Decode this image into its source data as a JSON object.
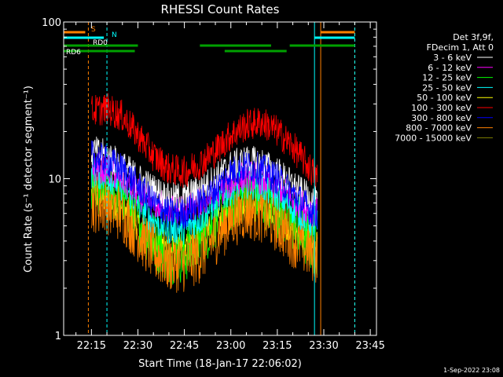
{
  "chart_data": {
    "type": "line",
    "title": "RHESSI Count Rates",
    "xlabel": "Start Time (18-Jan-17 22:06:02)",
    "ylabel": "Count Rate (s⁻¹ detector segment⁻¹)",
    "y_scale": "log",
    "ylim": [
      1,
      100
    ],
    "xlim": [
      "22:06:02",
      "23:47:00"
    ],
    "x_ticks": [
      "22:15",
      "22:30",
      "22:45",
      "23:00",
      "23:15",
      "23:30",
      "23:45"
    ],
    "y_ticks": [
      "1",
      "10",
      "100"
    ],
    "legend_header": [
      "Det 3f,9f,",
      "FDecim 1, Att 0"
    ],
    "legend_position": "right",
    "timestamp": "1-Sep-2022 23:08",
    "series": [
      {
        "name": "3 - 6 keV",
        "color": "#ffffff",
        "start": "22:15",
        "end": "23:28",
        "x": [
          "22:15",
          "22:20",
          "22:25",
          "22:30",
          "22:35",
          "22:40",
          "22:45",
          "22:50",
          "22:55",
          "23:00",
          "23:05",
          "23:10",
          "23:15",
          "23:20",
          "23:25",
          "23:28"
        ],
        "values": [
          15,
          14,
          12,
          10,
          8.5,
          7.5,
          7.5,
          8.5,
          10,
          12,
          13,
          12.5,
          11,
          9,
          7.5,
          7
        ]
      },
      {
        "name": "6 - 12 keV",
        "color": "#ff00ff",
        "start": "22:15",
        "end": "23:28",
        "x": [
          "22:15",
          "22:20",
          "22:25",
          "22:30",
          "22:35",
          "22:40",
          "22:45",
          "22:50",
          "22:55",
          "23:00",
          "23:05",
          "23:10",
          "23:15",
          "23:20",
          "23:25",
          "23:28"
        ],
        "values": [
          12,
          11.5,
          10,
          8,
          7,
          6.5,
          6.5,
          7,
          8,
          9.5,
          10.5,
          10,
          9,
          7.5,
          6.5,
          6
        ]
      },
      {
        "name": "12 - 25 keV",
        "color": "#00ff00",
        "start": "22:15",
        "end": "23:28",
        "x": [
          "22:15",
          "22:20",
          "22:25",
          "22:30",
          "22:35",
          "22:40",
          "22:45",
          "22:50",
          "22:55",
          "23:00",
          "23:05",
          "23:10",
          "23:15",
          "23:20",
          "23:25",
          "23:28"
        ],
        "values": [
          9,
          8.5,
          7.5,
          5.5,
          4,
          3.3,
          3.3,
          4,
          5.5,
          7,
          8,
          7.5,
          6.5,
          5,
          4,
          3.6
        ]
      },
      {
        "name": "25 - 50 keV",
        "color": "#00ffff",
        "start": "22:15",
        "end": "23:28",
        "x": [
          "22:15",
          "22:20",
          "22:25",
          "22:30",
          "22:35",
          "22:40",
          "22:45",
          "22:50",
          "22:55",
          "23:00",
          "23:05",
          "23:10",
          "23:15",
          "23:20",
          "23:25",
          "23:28"
        ],
        "values": [
          11,
          10.5,
          9,
          7,
          5.5,
          4.8,
          4.8,
          5.5,
          7,
          8.5,
          9.5,
          9,
          8,
          6.5,
          5.5,
          5
        ]
      },
      {
        "name": "50 - 100 keV",
        "color": "#ffff00",
        "start": "22:15",
        "end": "23:28",
        "x": [
          "22:15",
          "22:20",
          "22:25",
          "22:30",
          "22:35",
          "22:40",
          "22:45",
          "22:50",
          "22:55",
          "23:00",
          "23:05",
          "23:10",
          "23:15",
          "23:20",
          "23:25",
          "23:28"
        ],
        "values": [
          8,
          7.5,
          6.5,
          5,
          4,
          3.5,
          3.5,
          4,
          5,
          6,
          7,
          6.5,
          5.8,
          4.8,
          4,
          3.7
        ]
      },
      {
        "name": "100 - 300 keV",
        "color": "#ff0000",
        "start": "22:15",
        "end": "23:28",
        "x": [
          "22:15",
          "22:20",
          "22:25",
          "22:30",
          "22:35",
          "22:40",
          "22:45",
          "22:50",
          "22:55",
          "23:00",
          "23:05",
          "23:10",
          "23:15",
          "23:20",
          "23:25",
          "23:28"
        ],
        "values": [
          27,
          28,
          25,
          19,
          14,
          11.5,
          11,
          12.5,
          15,
          19,
          22,
          23,
          20,
          16,
          12,
          10
        ]
      },
      {
        "name": "300 - 800 keV",
        "color": "#0000ff",
        "start": "22:15",
        "end": "23:28",
        "x": [
          "22:15",
          "22:20",
          "22:25",
          "22:30",
          "22:35",
          "22:40",
          "22:45",
          "22:50",
          "22:55",
          "23:00",
          "23:05",
          "23:10",
          "23:15",
          "23:20",
          "23:25",
          "23:28"
        ],
        "values": [
          14,
          13,
          11.5,
          9,
          7,
          6,
          6,
          7,
          8.5,
          11,
          12,
          11.5,
          10,
          8,
          6.5,
          6
        ]
      },
      {
        "name": "800 - 7000 keV",
        "color": "#ff8000",
        "start": "22:15",
        "end": "23:28",
        "x": [
          "22:15",
          "22:20",
          "22:25",
          "22:30",
          "22:35",
          "22:40",
          "22:45",
          "22:50",
          "22:55",
          "23:00",
          "23:05",
          "23:10",
          "23:15",
          "23:20",
          "23:25",
          "23:28"
        ],
        "values": [
          7,
          6.8,
          6,
          4.5,
          3.4,
          2.9,
          2.9,
          3.3,
          4.3,
          5.5,
          6.3,
          6,
          5.2,
          4.2,
          3.5,
          3.2
        ]
      },
      {
        "name": "7000 - 15000 keV",
        "color": "#808000",
        "start": "22:15",
        "end": "23:28",
        "x": [],
        "values": []
      }
    ],
    "flag_bars": [
      {
        "label": "S",
        "color": "#ff8000",
        "segments": [
          [
            "22:06",
            "22:13"
          ],
          [
            "23:29",
            "23:40"
          ]
        ]
      },
      {
        "label": "N",
        "color": "#00ffff",
        "segments": [
          [
            "22:06",
            "22:19"
          ],
          [
            "23:27",
            "23:40"
          ]
        ]
      },
      {
        "label": "RD0",
        "color": "#00a000",
        "segments": [
          [
            "22:06",
            "22:30"
          ],
          [
            "22:50",
            "23:13"
          ],
          [
            "23:19",
            "23:40"
          ]
        ]
      },
      {
        "label": "RD6",
        "color": "#00a000",
        "segments": [
          [
            "22:06",
            "22:29"
          ],
          [
            "22:58",
            "23:18"
          ]
        ]
      }
    ],
    "vertical_markers": [
      {
        "time": "22:06:02",
        "color": "#00ffff",
        "style": "solid"
      },
      {
        "time": "22:14",
        "color": "#ff8000",
        "style": "dashed"
      },
      {
        "time": "22:20",
        "color": "#00ffff",
        "style": "dashed"
      },
      {
        "time": "23:27",
        "color": "#00ffff",
        "style": "solid"
      },
      {
        "time": "23:29",
        "color": "#ff8000",
        "style": "solid"
      },
      {
        "time": "23:40",
        "color": "#ff8000",
        "style": "dashed"
      },
      {
        "time": "23:40",
        "color": "#00ffff",
        "style": "dashed"
      }
    ],
    "grid": false
  }
}
